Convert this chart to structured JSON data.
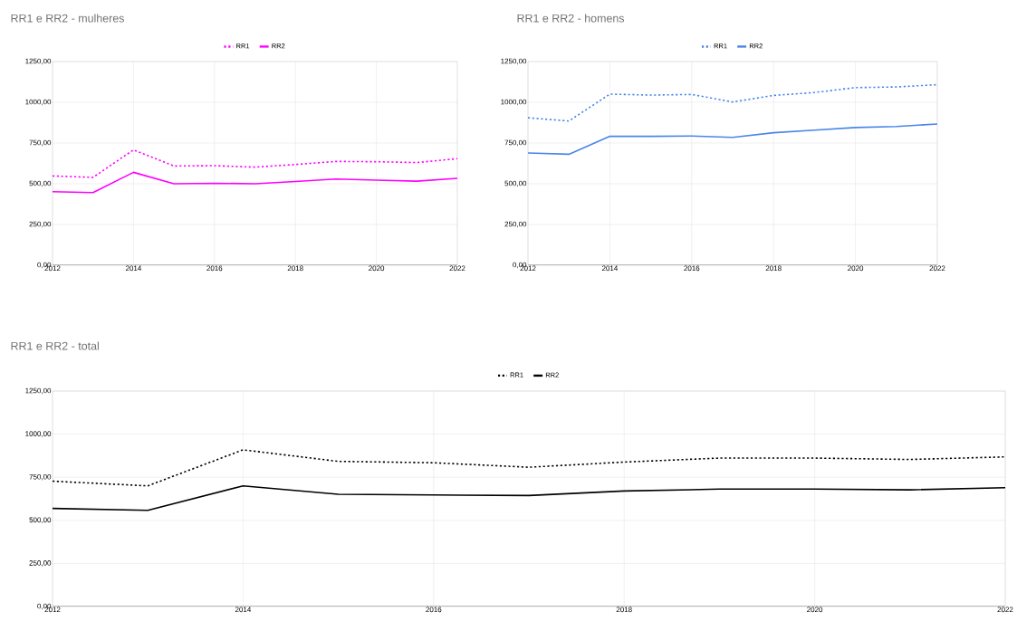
{
  "chart_data": [
    {
      "type": "line",
      "title": "RR1 e RR2 - mulheres",
      "x": [
        2012,
        2013,
        2014,
        2015,
        2016,
        2017,
        2018,
        2019,
        2020,
        2021,
        2022
      ],
      "xlim": [
        2012,
        2022
      ],
      "xticks": [
        2012,
        2014,
        2016,
        2018,
        2020,
        2022
      ],
      "ylim": [
        0,
        1250
      ],
      "yticks": [
        {
          "value": 0,
          "label": "0,00"
        },
        {
          "value": 250,
          "label": "250,00"
        },
        {
          "value": 500,
          "label": "500,00"
        },
        {
          "value": 750,
          "label": "750,00"
        },
        {
          "value": 1000,
          "label": "1000,00"
        },
        {
          "value": 1250,
          "label": "1250,00"
        }
      ],
      "grid": true,
      "legend": "top",
      "series": [
        {
          "name": "RR1",
          "color": "#ff00ff",
          "line_style": "dotted",
          "values": [
            548,
            539,
            708,
            609,
            611,
            602,
            618,
            637,
            635,
            630,
            654
          ]
        },
        {
          "name": "RR2",
          "color": "#ff00ff",
          "line_style": "solid",
          "values": [
            451,
            446,
            570,
            500,
            503,
            500,
            514,
            529,
            522,
            516,
            533
          ]
        }
      ]
    },
    {
      "type": "line",
      "title": "RR1 e RR2 - homens",
      "x": [
        2012,
        2013,
        2014,
        2015,
        2016,
        2017,
        2018,
        2019,
        2020,
        2021,
        2022
      ],
      "xlim": [
        2012,
        2022
      ],
      "xticks": [
        2012,
        2014,
        2016,
        2018,
        2020,
        2022
      ],
      "ylim": [
        0,
        1250
      ],
      "yticks": [
        {
          "value": 0,
          "label": "0,00"
        },
        {
          "value": 250,
          "label": "250,00"
        },
        {
          "value": 500,
          "label": "500,00"
        },
        {
          "value": 750,
          "label": "750,00"
        },
        {
          "value": 1000,
          "label": "1000,00"
        },
        {
          "value": 1250,
          "label": "1250,00"
        }
      ],
      "grid": true,
      "legend": "top",
      "series": [
        {
          "name": "RR1",
          "color": "#4a86e8",
          "line_style": "dotted",
          "values": [
            905,
            885,
            1050,
            1044,
            1048,
            1002,
            1042,
            1060,
            1090,
            1094,
            1108
          ]
        },
        {
          "name": "RR2",
          "color": "#4a86e8",
          "line_style": "solid",
          "values": [
            689,
            681,
            791,
            791,
            793,
            785,
            813,
            829,
            845,
            851,
            867
          ]
        }
      ]
    },
    {
      "type": "line",
      "title": "RR1 e RR2 - total",
      "x": [
        2012,
        2013,
        2014,
        2015,
        2016,
        2017,
        2018,
        2019,
        2020,
        2021,
        2022
      ],
      "xlim": [
        2012,
        2022
      ],
      "xticks": [
        2012,
        2014,
        2016,
        2018,
        2020,
        2022
      ],
      "ylim": [
        0,
        1250
      ],
      "yticks": [
        {
          "value": 0,
          "label": "0,00"
        },
        {
          "value": 250,
          "label": "250,00"
        },
        {
          "value": 500,
          "label": "500,00"
        },
        {
          "value": 750,
          "label": "750,00"
        },
        {
          "value": 1000,
          "label": "1000,00"
        },
        {
          "value": 1250,
          "label": "1250,00"
        }
      ],
      "grid": true,
      "legend": "top",
      "series": [
        {
          "name": "RR1",
          "color": "#000000",
          "line_style": "dotted",
          "values": [
            727,
            700,
            909,
            842,
            834,
            808,
            838,
            861,
            861,
            853,
            868
          ]
        },
        {
          "name": "RR2",
          "color": "#000000",
          "line_style": "solid",
          "values": [
            569,
            558,
            700,
            651,
            647,
            644,
            670,
            681,
            681,
            677,
            689
          ]
        }
      ]
    }
  ]
}
